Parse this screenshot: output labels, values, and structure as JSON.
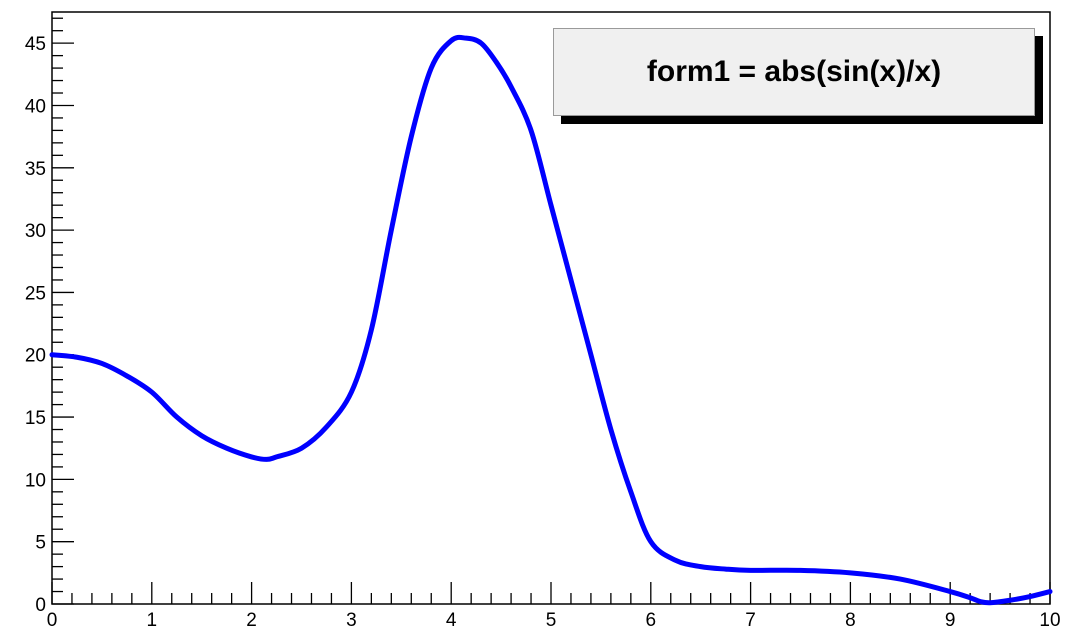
{
  "chart_data": {
    "type": "line",
    "title": "",
    "xlabel": "",
    "ylabel": "",
    "xlim": [
      0,
      10
    ],
    "ylim": [
      0,
      47.5
    ],
    "x_ticks": [
      0,
      1,
      2,
      3,
      4,
      5,
      6,
      7,
      8,
      9,
      10
    ],
    "y_ticks": [
      0,
      5,
      10,
      15,
      20,
      25,
      30,
      35,
      40,
      45
    ],
    "grid": false,
    "legend": {
      "placement": "top-right",
      "text": "form1 = abs(sin(x)/x)"
    },
    "series": [
      {
        "color": "#0000ff",
        "x": [
          0,
          0.25,
          0.5,
          0.75,
          1.0,
          1.25,
          1.5,
          1.75,
          2.0,
          2.15,
          2.25,
          2.5,
          2.75,
          3.0,
          3.2,
          3.4,
          3.6,
          3.8,
          4.0,
          4.15,
          4.3,
          4.45,
          4.6,
          4.8,
          5.0,
          5.2,
          5.4,
          5.6,
          5.8,
          6.0,
          6.25,
          6.5,
          6.75,
          7.0,
          7.5,
          8.0,
          8.5,
          9.0,
          9.2,
          9.3,
          9.4,
          9.6,
          9.8,
          10.0
        ],
        "y": [
          20.0,
          19.8,
          19.3,
          18.3,
          17.0,
          15.0,
          13.5,
          12.5,
          11.8,
          11.6,
          11.8,
          12.5,
          14.2,
          17.0,
          22.0,
          30.0,
          37.5,
          43.0,
          45.2,
          45.4,
          45.0,
          43.5,
          41.5,
          38.0,
          32.0,
          26.0,
          20.0,
          14.0,
          9.0,
          5.0,
          3.5,
          3.0,
          2.8,
          2.7,
          2.7,
          2.5,
          2.0,
          1.0,
          0.5,
          0.2,
          0.1,
          0.3,
          0.6,
          1.0
        ]
      }
    ]
  }
}
